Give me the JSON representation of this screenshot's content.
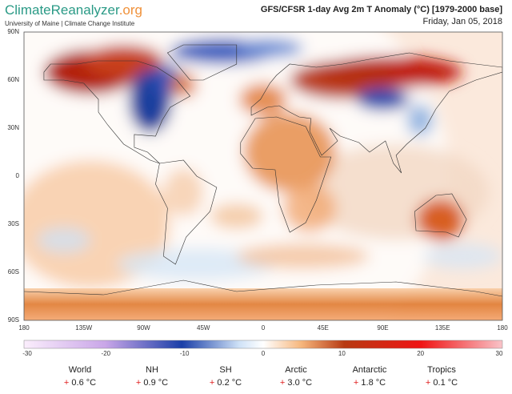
{
  "header": {
    "logo_main": "ClimateReanalyzer",
    "logo_suffix": ".org",
    "affiliation": "University of Maine | Climate Change Institute",
    "title": "GFS/CFSR 1-day Avg 2m T Anomaly (°C) [1979-2000 base]",
    "date": "Friday, Jan 05, 2018"
  },
  "map": {
    "lat_labels": [
      "90N",
      "60N",
      "30N",
      "0",
      "30S",
      "60S",
      "90S"
    ],
    "lon_labels": [
      "180",
      "135W",
      "90W",
      "45W",
      "0",
      "45E",
      "90E",
      "135E",
      "180"
    ]
  },
  "colorbar": {
    "labels": [
      "-30",
      "-20",
      "-10",
      "0",
      "10",
      "20",
      "30"
    ]
  },
  "stats": {
    "marker": "+",
    "items": [
      {
        "label": "World",
        "value": "0.6 °C"
      },
      {
        "label": "NH",
        "value": "0.9 °C"
      },
      {
        "label": "SH",
        "value": "0.2 °C"
      },
      {
        "label": "Arctic",
        "value": "3.0 °C"
      },
      {
        "label": "Antarctic",
        "value": "1.8 °C"
      },
      {
        "label": "Tropics",
        "value": "0.1 °C"
      }
    ]
  }
}
